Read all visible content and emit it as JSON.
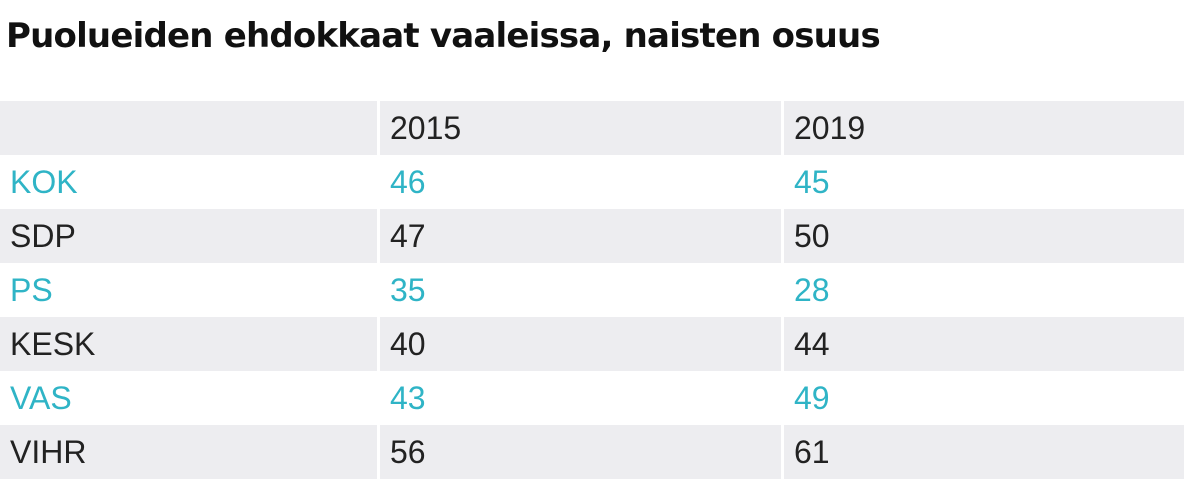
{
  "title": "Puolueiden ehdokkaat vaaleissa, naisten osuus",
  "colors": {
    "accent": "#2fb4c6",
    "text": "#222222",
    "header_bg": "#ededf0"
  },
  "chart_data": {
    "type": "table",
    "title": "Puolueiden ehdokkaat vaaleissa, naisten osuus",
    "columns": [
      "",
      "2015",
      "2019"
    ],
    "rows": [
      {
        "party": "KOK",
        "values": [
          "46",
          "45"
        ]
      },
      {
        "party": "SDP",
        "values": [
          "47",
          "50"
        ]
      },
      {
        "party": "PS",
        "values": [
          "35",
          "28"
        ]
      },
      {
        "party": "KESK",
        "values": [
          "40",
          "44"
        ]
      },
      {
        "party": "VAS",
        "values": [
          "43",
          "49"
        ]
      },
      {
        "party": "VIHR",
        "values": [
          "56",
          "61"
        ]
      }
    ]
  }
}
